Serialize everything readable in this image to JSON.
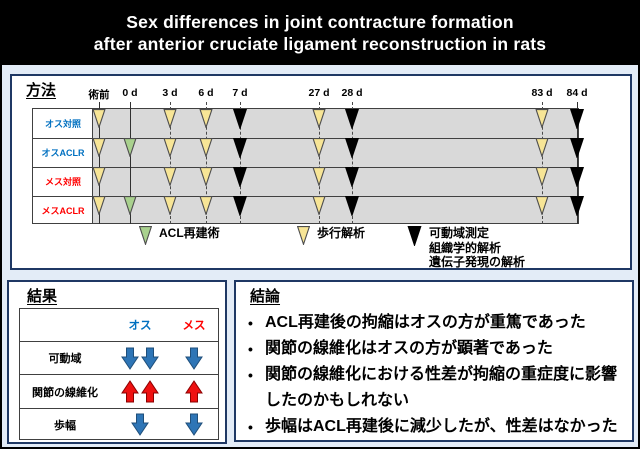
{
  "title": {
    "line1": "Sex differences in joint contracture formation",
    "line2": "after anterior cruciate ligament reconstruction in rats"
  },
  "colors": {
    "title_bg": "#000000",
    "title_fg": "#FFFFFF",
    "page_bg": "#E3ECF7",
    "panel_border": "#1F3864",
    "band_gray": "#D9D9D9",
    "grid_line": "#404040",
    "walk_fill": "#F7E596",
    "acl_fill": "#A9D18E",
    "measure_fill": "#000000",
    "marker_stroke": "#4d4d4d",
    "male": "#0070C0",
    "female": "#FF0000",
    "result_down_fill": "#2E75B6",
    "result_down_stroke": "#1F4E79",
    "result_up_fill": "#EE1111",
    "result_up_stroke": "#8B0000"
  },
  "methods": {
    "heading": "方法",
    "timepoints": [
      "術前",
      "0 d",
      "3 d",
      "6 d",
      "7 d",
      "27 d",
      "28 d",
      "83 d",
      "84 d"
    ],
    "rows": [
      {
        "label": "オス対照",
        "group": "male",
        "events": [
          {
            "tp": 0,
            "type": "walk"
          },
          {
            "tp": 2,
            "type": "walk"
          },
          {
            "tp": 3,
            "type": "walk"
          },
          {
            "tp": 4,
            "type": "measure"
          },
          {
            "tp": 5,
            "type": "walk"
          },
          {
            "tp": 6,
            "type": "measure"
          },
          {
            "tp": 7,
            "type": "walk"
          },
          {
            "tp": 8,
            "type": "measure"
          }
        ]
      },
      {
        "label": "オスACLR",
        "group": "male",
        "events": [
          {
            "tp": 0,
            "type": "walk"
          },
          {
            "tp": 1,
            "type": "acl"
          },
          {
            "tp": 2,
            "type": "walk"
          },
          {
            "tp": 3,
            "type": "walk"
          },
          {
            "tp": 4,
            "type": "measure"
          },
          {
            "tp": 5,
            "type": "walk"
          },
          {
            "tp": 6,
            "type": "measure"
          },
          {
            "tp": 7,
            "type": "walk"
          },
          {
            "tp": 8,
            "type": "measure"
          }
        ]
      },
      {
        "label": "メス対照",
        "group": "female",
        "events": [
          {
            "tp": 0,
            "type": "walk"
          },
          {
            "tp": 2,
            "type": "walk"
          },
          {
            "tp": 3,
            "type": "walk"
          },
          {
            "tp": 4,
            "type": "measure"
          },
          {
            "tp": 5,
            "type": "walk"
          },
          {
            "tp": 6,
            "type": "measure"
          },
          {
            "tp": 7,
            "type": "walk"
          },
          {
            "tp": 8,
            "type": "measure"
          }
        ]
      },
      {
        "label": "メスACLR",
        "group": "female",
        "events": [
          {
            "tp": 0,
            "type": "walk"
          },
          {
            "tp": 1,
            "type": "acl"
          },
          {
            "tp": 2,
            "type": "walk"
          },
          {
            "tp": 3,
            "type": "walk"
          },
          {
            "tp": 4,
            "type": "measure"
          },
          {
            "tp": 5,
            "type": "walk"
          },
          {
            "tp": 6,
            "type": "measure"
          },
          {
            "tp": 7,
            "type": "walk"
          },
          {
            "tp": 8,
            "type": "measure"
          }
        ]
      }
    ],
    "legend": [
      {
        "type": "acl",
        "lines": [
          "ACL再建術"
        ]
      },
      {
        "type": "walk",
        "lines": [
          "歩行解析"
        ]
      },
      {
        "type": "measure",
        "lines": [
          "可動域測定",
          "組織学的解析",
          "遺伝子発現の解析"
        ]
      }
    ]
  },
  "results": {
    "heading": "結果",
    "columns": [
      {
        "label": "オス",
        "group": "male"
      },
      {
        "label": "メス",
        "group": "female"
      }
    ],
    "rows": [
      {
        "label": "可動域",
        "cells": [
          {
            "dir": "down",
            "count": 2
          },
          {
            "dir": "down",
            "count": 1
          }
        ]
      },
      {
        "label": "関節の線維化",
        "cells": [
          {
            "dir": "up",
            "count": 2
          },
          {
            "dir": "up",
            "count": 1
          }
        ]
      },
      {
        "label": "歩幅",
        "cells": [
          {
            "dir": "down",
            "count": 1
          },
          {
            "dir": "down",
            "count": 1
          }
        ]
      }
    ]
  },
  "conclusions": {
    "heading": "結論",
    "bullets": [
      "ACL再建後の拘縮はオスの方が重篤であった",
      "関節の線維化はオスの方が顕著であった",
      "関節の線維化における性差が拘縮の重症度に影響したのかもしれない",
      "歩幅はACL再建後に減少したが、性差はなかった"
    ]
  }
}
